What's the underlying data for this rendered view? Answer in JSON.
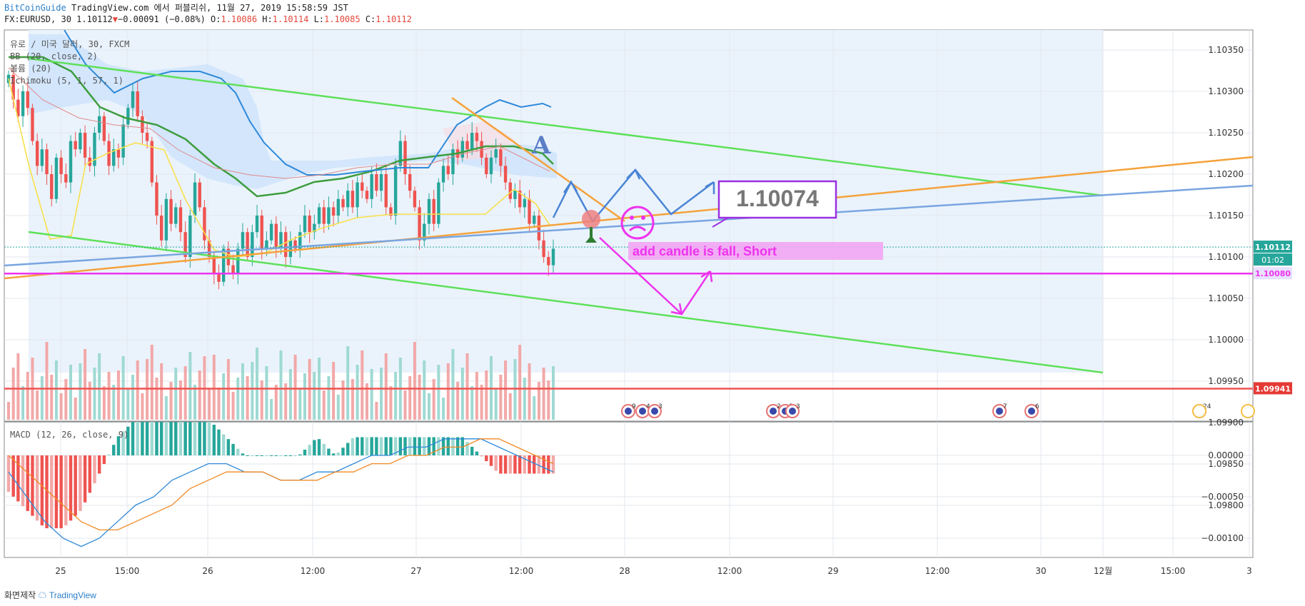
{
  "header": {
    "brand": "BitCoinGuide",
    "publisher_text": "TradingView.com 에서 퍼블리쉬, 11월 27, 2019 15:58:59 JST",
    "symbol_line": "FX:EURUSD, 30",
    "last": "1.10112",
    "change": "−0.00091 (−0.08%)",
    "o_label": "O:",
    "o": "1.10086",
    "h_label": "H:",
    "h": "1.10114",
    "l_label": "L:",
    "l": "1.10085",
    "c_label": "C:",
    "c": "1.10112"
  },
  "indicators": {
    "symbol_desc": "유로 / 미국 달러, 30, FXCM",
    "bb": "BB (20, close, 2)",
    "bollinger": "볼륨 (20)",
    "ichimoku": "Ichimoku (5, 1, 57, 1)",
    "macd": "MACD (12, 26, close, 9)"
  },
  "annotations": {
    "letter_a": "A",
    "price_box": "1.10074",
    "note": "add candle is fall,  Short",
    "sad_face": "☹"
  },
  "price_axis": {
    "ticks": [
      "1.10350",
      "1.10300",
      "1.10250",
      "1.10200",
      "1.10150",
      "1.10100",
      "1.10050",
      "1.10000",
      "1.09950",
      "1.09900",
      "1.09850",
      "1.09800"
    ],
    "current_price": "1.10112",
    "countdown": "01:02",
    "magenta_level": "1.10080",
    "red_level": "1.09941"
  },
  "macd_axis": {
    "ticks": [
      "0.00000",
      "−0.00050",
      "−0.00100"
    ]
  },
  "time_axis": {
    "ticks": [
      "25",
      "15:00",
      "26",
      "12:00",
      "27",
      "12:00",
      "28",
      "12:00",
      "29",
      "12:00",
      "30",
      "12월",
      "15:00",
      "3"
    ]
  },
  "events": {
    "labels": [
      "9",
      "4",
      "3",
      "2",
      "3",
      "3",
      "7",
      "6",
      "24"
    ]
  },
  "footer": {
    "made_with": "화면제작",
    "tv": "TradingView"
  },
  "colors": {
    "bull": "#26a69a",
    "bear": "#ef5350",
    "green_line": "#5ee05a",
    "orange_line": "#f5a23c",
    "blue_line": "#7aa6e0",
    "magenta": "#ee33ee",
    "red_level": "#ef5350",
    "arrow_blue": "#4a84d6",
    "cloud": "#cfe3fb"
  },
  "chart_data": {
    "type": "candlestick",
    "symbol": "FX:EURUSD",
    "timeframe": "30",
    "ylim": [
      1.0978,
      1.1038
    ],
    "levels": {
      "current": 1.10112,
      "magenta": 1.1008,
      "red": 1.09941,
      "target": 1.10074
    },
    "closes": [
      1.1032,
      1.1029,
      1.1027,
      1.103,
      1.1028,
      1.1024,
      1.1021,
      1.1023,
      1.102,
      1.1017,
      1.1022,
      1.102,
      1.1019,
      1.1024,
      1.1023,
      1.1025,
      1.1022,
      1.1021,
      1.1025,
      1.1027,
      1.1024,
      1.1021,
      1.1023,
      1.1022,
      1.1026,
      1.1028,
      1.103,
      1.1027,
      1.1025,
      1.1024,
      1.1019,
      1.1015,
      1.1012,
      1.1017,
      1.1014,
      1.1016,
      1.1013,
      1.101,
      1.1015,
      1.1019,
      1.1016,
      1.1012,
      1.101,
      1.1008,
      1.1007,
      1.1011,
      1.1009,
      1.1008,
      1.1011,
      1.1013,
      1.101,
      1.1013,
      1.1015,
      1.1011,
      1.1012,
      1.1014,
      1.1011,
      1.1013,
      1.101,
      1.1012,
      1.1011,
      1.1013,
      1.1015,
      1.1013,
      1.1014,
      1.1016,
      1.1014,
      1.1016,
      1.1015,
      1.1017,
      1.1016,
      1.1018,
      1.1016,
      1.1019,
      1.1018,
      1.1017,
      1.102,
      1.1018,
      1.102,
      1.1016,
      1.1015,
      1.1021,
      1.1024,
      1.102,
      1.1018,
      1.1016,
      1.1012,
      1.1014,
      1.1017,
      1.1014,
      1.1019,
      1.1021,
      1.102,
      1.1023,
      1.1022,
      1.1024,
      1.1023,
      1.1025,
      1.1024,
      1.1022,
      1.102,
      1.1022,
      1.1023,
      1.1021,
      1.1019,
      1.1017,
      1.1018,
      1.1016,
      1.1017,
      1.1014,
      1.1015,
      1.1012,
      1.101,
      1.1009,
      1.1011
    ],
    "series": [
      {
        "name": "MACD",
        "values": [
          -0.0002,
          -0.0005,
          -0.0008,
          -0.001,
          -0.0011,
          -0.001,
          -0.0008,
          -0.0006,
          -0.0005,
          -0.0003,
          -0.0002,
          -0.0001,
          -0.0001,
          -0.0002,
          -0.0002,
          -0.0003,
          -0.0003,
          -0.0002,
          -0.0002,
          -0.0001,
          0.0,
          0.0,
          0.0001,
          0.0001,
          0.0002,
          0.0002,
          0.0002,
          0.0001,
          0.0,
          -0.0001,
          -0.0002
        ]
      },
      {
        "name": "Signal",
        "values": [
          0.0,
          -0.0002,
          -0.0004,
          -0.0006,
          -0.0008,
          -0.0009,
          -0.0009,
          -0.0008,
          -0.0007,
          -0.0006,
          -0.0004,
          -0.0003,
          -0.0002,
          -0.0002,
          -0.0002,
          -0.0003,
          -0.0003,
          -0.0003,
          -0.0002,
          -0.0002,
          -0.0001,
          -0.0001,
          0.0,
          0.0,
          0.0001,
          0.0001,
          0.0002,
          0.0002,
          0.0001,
          0.0,
          -0.0001
        ]
      }
    ]
  }
}
